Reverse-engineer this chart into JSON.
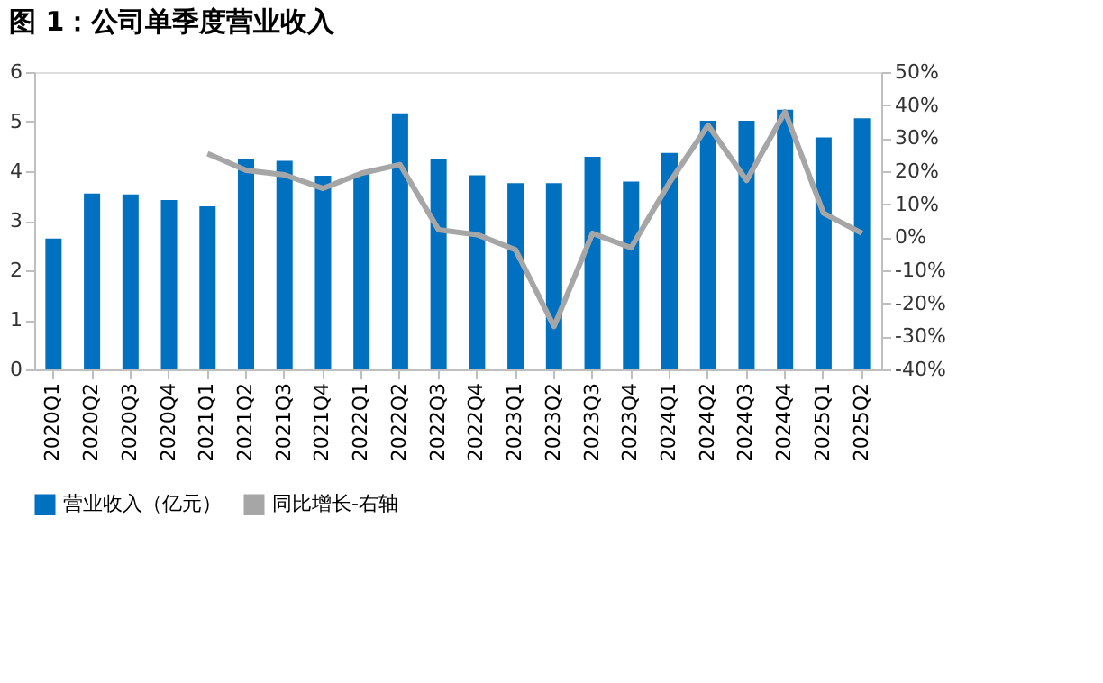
{
  "chart_data": {
    "type": "bar",
    "title": "图 1：公司单季度营业收入",
    "categories": [
      "2020Q1",
      "2020Q2",
      "2020Q3",
      "2020Q4",
      "2021Q1",
      "2021Q2",
      "2021Q3",
      "2021Q4",
      "2022Q1",
      "2022Q2",
      "2022Q3",
      "2022Q4",
      "2023Q1",
      "2023Q2",
      "2023Q3",
      "2023Q4",
      "2024Q1",
      "2024Q2",
      "2024Q3",
      "2024Q4",
      "2025Q1",
      "2025Q2"
    ],
    "series": [
      {
        "name": "营业收入（亿元）",
        "color": "#0070c0",
        "values": [
          2.64,
          3.55,
          3.53,
          3.42,
          3.29,
          4.24,
          4.21,
          3.91,
          3.95,
          5.17,
          4.24,
          3.92,
          3.76,
          3.76,
          4.29,
          3.79,
          4.37,
          5.02,
          5.02,
          5.24,
          4.68,
          5.07
        ]
      },
      {
        "name": "同比增长-右轴",
        "type": "line",
        "axis": "y2",
        "color": "#a6a6a6",
        "values": [
          null,
          null,
          null,
          null,
          25.3,
          20.3,
          18.9,
          14.8,
          19.4,
          22.0,
          2.3,
          0.8,
          -3.8,
          -27.0,
          1.2,
          -3.2,
          16.6,
          33.9,
          17.2,
          38.0,
          7.3,
          1.2
        ]
      }
    ],
    "ylim": [
      0,
      6
    ],
    "yticks": [
      0,
      1,
      2,
      3,
      4,
      5,
      6
    ],
    "y2lim": [
      -40,
      50
    ],
    "y2ticks": [
      {
        "value": -40,
        "label": "-40%"
      },
      {
        "value": -30,
        "label": "-30%"
      },
      {
        "value": -20,
        "label": "-20%"
      },
      {
        "value": -10,
        "label": "-10%"
      },
      {
        "value": 0,
        "label": "0%"
      },
      {
        "value": 10,
        "label": "10%"
      },
      {
        "value": 20,
        "label": "20%"
      },
      {
        "value": 30,
        "label": "30%"
      },
      {
        "value": 40,
        "label": "40%"
      },
      {
        "value": 50,
        "label": "50%"
      }
    ],
    "grid": false,
    "legend": "bottom",
    "marker": "none",
    "line_style": "solid"
  }
}
